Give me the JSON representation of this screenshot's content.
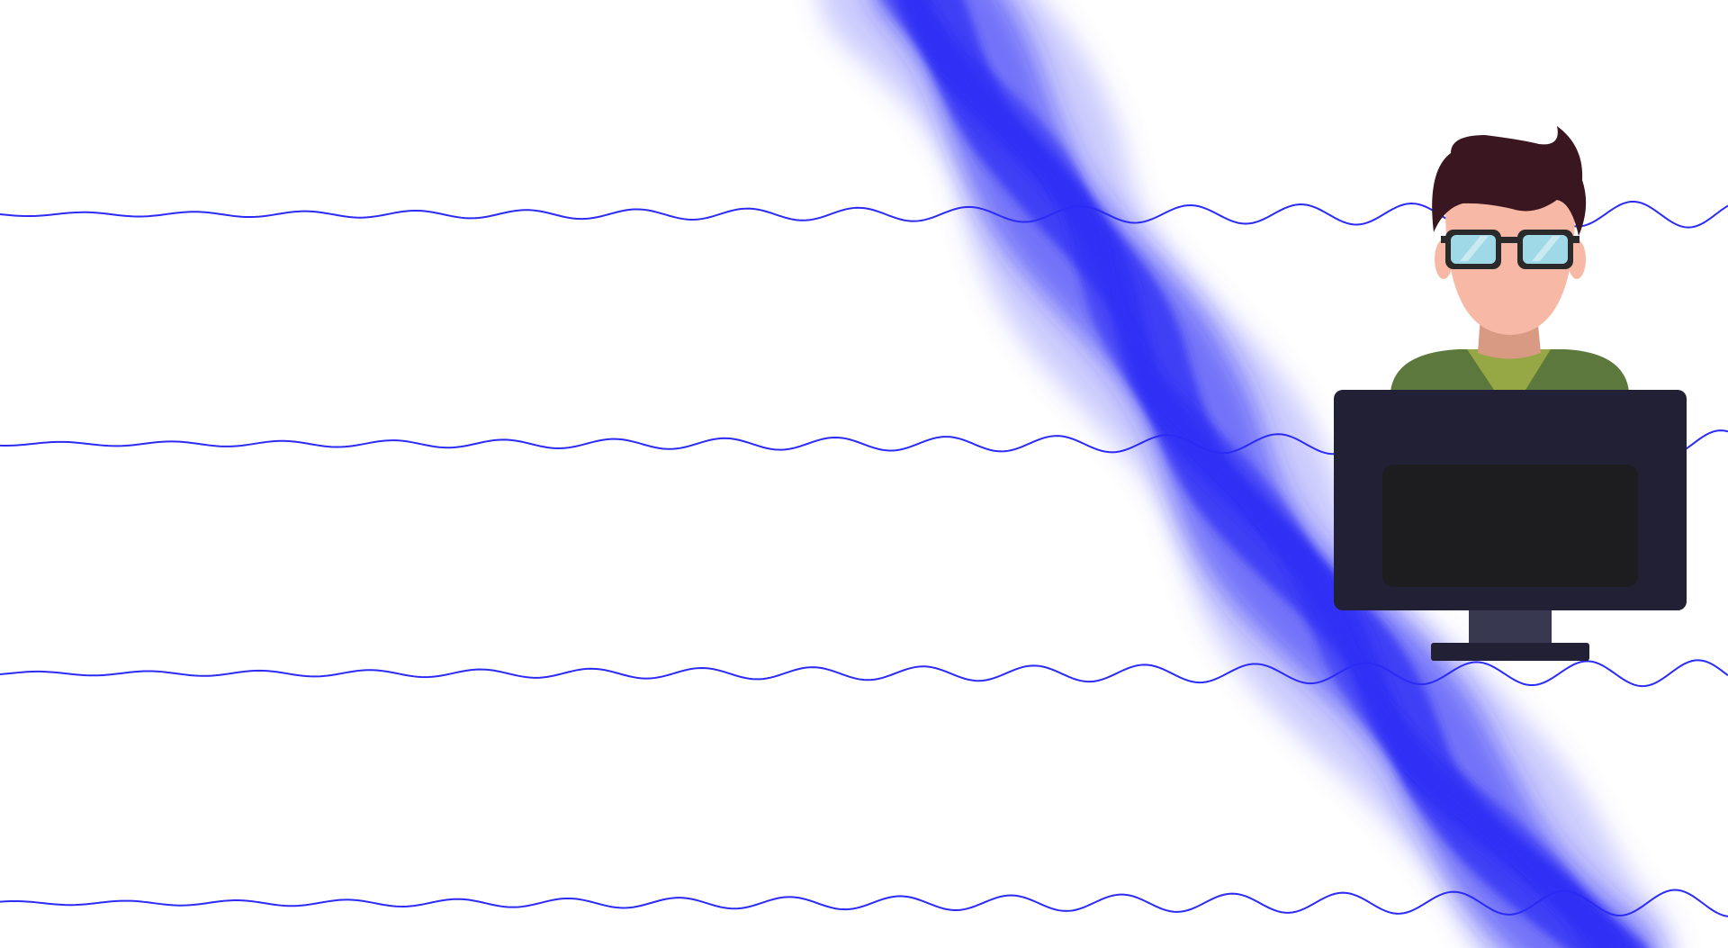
{
  "scene": {
    "background_color": "#ffffff",
    "wave_color": "#2b2bf5",
    "wave_glow_color": "#6f6ff8",
    "wave_count": 4,
    "wave_style": "sinusoidal lines with amplitude growing left-to-right, crossing a diagonal blurred blue band",
    "illustration": {
      "subject": "person-at-computer-icon",
      "hair_color": "#3a1720",
      "skin_color": "#f7b9a5",
      "neck_color": "#d99a84",
      "shirt_color": "#5d783d",
      "collar_color": "#96a846",
      "glasses_frame_color": "#2a2a2a",
      "glasses_lens_color": "#9fd8e6",
      "monitor_frame_color": "#222034",
      "monitor_screen_color": "#1d1d20",
      "monitor_stand_color": "#383850"
    }
  }
}
